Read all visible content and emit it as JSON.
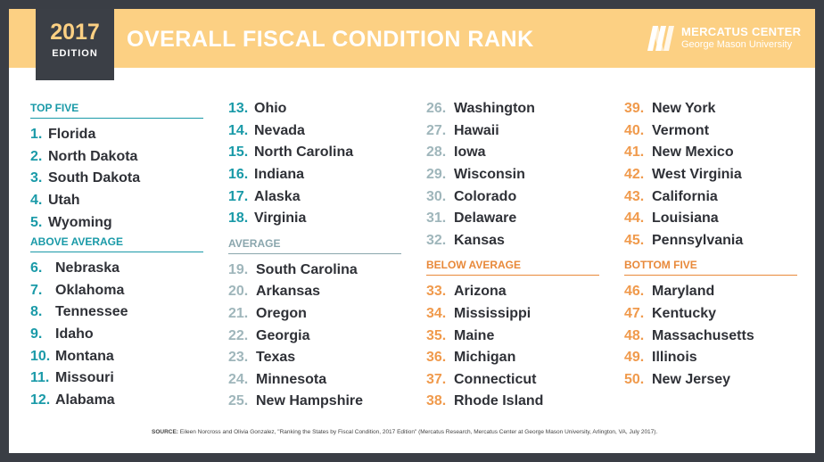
{
  "header": {
    "year": "2017",
    "edition": "EDITION",
    "title": "OVERALL FISCAL CONDITION RANK",
    "logo_line1": "MERCATUS CENTER",
    "logo_line2": "George Mason University"
  },
  "col1": {
    "top_five_label": "TOP FIVE",
    "top_five": [
      {
        "rank": "1.",
        "state": "Florida"
      },
      {
        "rank": "2.",
        "state": "North Dakota"
      },
      {
        "rank": "3.",
        "state": "South Dakota"
      },
      {
        "rank": "4.",
        "state": "Utah"
      },
      {
        "rank": "5.",
        "state": "Wyoming"
      }
    ],
    "above_average_label": "ABOVE AVERAGE",
    "above_average": [
      {
        "rank": "6.",
        "state": "Nebraska"
      },
      {
        "rank": "7.",
        "state": "Oklahoma"
      },
      {
        "rank": "8.",
        "state": "Tennessee"
      },
      {
        "rank": "9.",
        "state": "Idaho"
      },
      {
        "rank": "10.",
        "state": "Montana"
      },
      {
        "rank": "11.",
        "state": "Missouri"
      },
      {
        "rank": "12.",
        "state": "Alabama"
      }
    ]
  },
  "col2": {
    "above_average_cont": [
      {
        "rank": "13.",
        "state": "Ohio"
      },
      {
        "rank": "14.",
        "state": "Nevada"
      },
      {
        "rank": "15.",
        "state": "North Carolina"
      },
      {
        "rank": "16.",
        "state": "Indiana"
      },
      {
        "rank": "17.",
        "state": "Alaska"
      },
      {
        "rank": "18.",
        "state": "Virginia"
      }
    ],
    "average_label": "AVERAGE",
    "average": [
      {
        "rank": "19.",
        "state": "South Carolina"
      },
      {
        "rank": "20.",
        "state": "Arkansas"
      },
      {
        "rank": "21.",
        "state": "Oregon"
      },
      {
        "rank": "22.",
        "state": "Georgia"
      },
      {
        "rank": "23.",
        "state": "Texas"
      },
      {
        "rank": "24.",
        "state": "Minnesota"
      },
      {
        "rank": "25.",
        "state": "New Hampshire"
      }
    ]
  },
  "col3": {
    "average_cont": [
      {
        "rank": "26.",
        "state": "Washington"
      },
      {
        "rank": "27.",
        "state": "Hawaii"
      },
      {
        "rank": "28.",
        "state": "Iowa"
      },
      {
        "rank": "29.",
        "state": "Wisconsin"
      },
      {
        "rank": "30.",
        "state": "Colorado"
      },
      {
        "rank": "31.",
        "state": "Delaware"
      },
      {
        "rank": "32.",
        "state": "Kansas"
      }
    ],
    "below_average_label": "BELOW AVERAGE",
    "below_average": [
      {
        "rank": "33.",
        "state": "Arizona"
      },
      {
        "rank": "34.",
        "state": "Mississippi"
      },
      {
        "rank": "35.",
        "state": "Maine"
      },
      {
        "rank": "36.",
        "state": "Michigan"
      },
      {
        "rank": "37.",
        "state": "Connecticut"
      },
      {
        "rank": "38.",
        "state": "Rhode Island"
      }
    ]
  },
  "col4": {
    "below_average_cont": [
      {
        "rank": "39.",
        "state": "New York"
      },
      {
        "rank": "40.",
        "state": "Vermont"
      },
      {
        "rank": "41.",
        "state": "New Mexico"
      },
      {
        "rank": "42.",
        "state": "West Virginia"
      },
      {
        "rank": "43.",
        "state": "California"
      },
      {
        "rank": "44.",
        "state": "Louisiana"
      },
      {
        "rank": "45.",
        "state": "Pennsylvania"
      }
    ],
    "bottom_five_label": "BOTTOM FIVE",
    "bottom_five": [
      {
        "rank": "46.",
        "state": "Maryland"
      },
      {
        "rank": "47.",
        "state": "Kentucky"
      },
      {
        "rank": "48.",
        "state": "Massachusetts"
      },
      {
        "rank": "49.",
        "state": "Illinois"
      },
      {
        "rank": "50.",
        "state": "New Jersey"
      }
    ]
  },
  "source": {
    "label": "SOURCE:",
    "text": "Eileen Norcross and Olivia Gonzalez, \"Ranking the States by Fiscal Condition, 2017 Edition\" (Mercatus Research, Mercatus Center at George Mason University, Arlington, VA, July 2017)."
  },
  "colors": {
    "header_bg": "#fcd083",
    "edition_bg": "#3b3f46",
    "teal": "#1a9aa8",
    "gray": "#9fb6bb",
    "orange": "#f09a4c",
    "frame": "#3a3e45"
  }
}
